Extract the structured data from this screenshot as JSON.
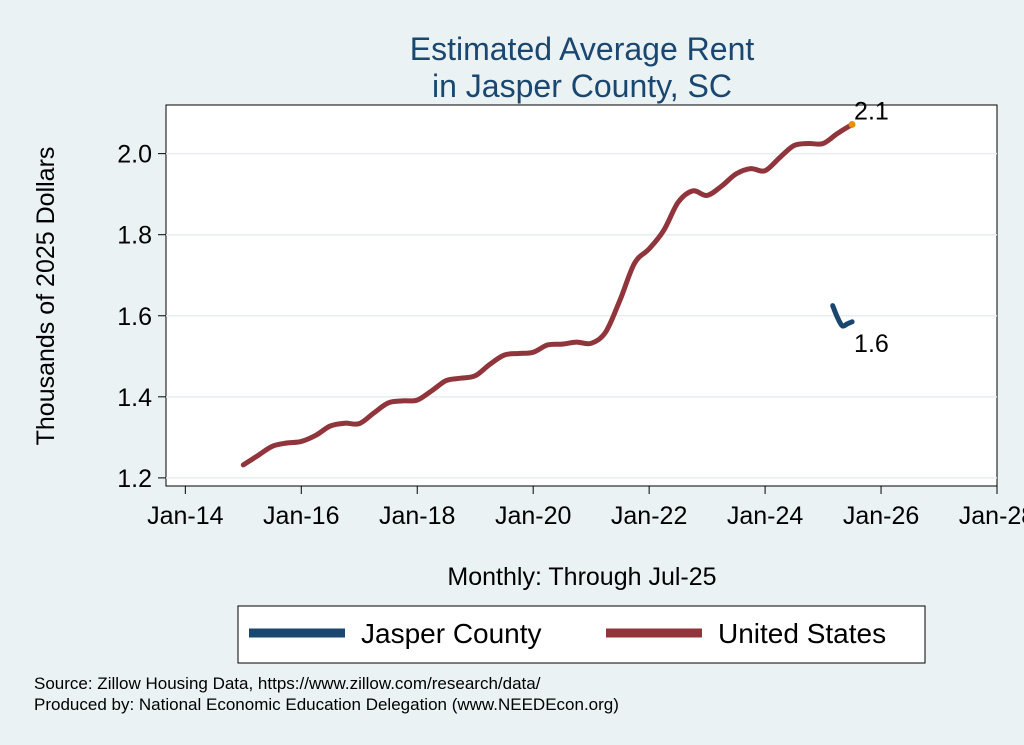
{
  "chart_data": {
    "type": "line",
    "title": [
      "Estimated Average Rent",
      "in Jasper County, SC"
    ],
    "ylabel": "Thousands of 2025 Dollars",
    "xlabel": "Monthly: Through Jul-25",
    "x_ticks": [
      "Jan-14",
      "Jan-16",
      "Jan-18",
      "Jan-20",
      "Jan-22",
      "Jan-24",
      "Jan-26",
      "Jan-28"
    ],
    "y_ticks": [
      "1.2",
      "1.4",
      "1.6",
      "1.8",
      "2.0"
    ],
    "xlim": [
      "2013-09",
      "2028-01"
    ],
    "ylim": [
      1.18,
      2.12
    ],
    "grid": true,
    "legend_position": "bottom",
    "series": [
      {
        "name": "Jasper County",
        "color": "#1a476f",
        "end_label": "1.6",
        "points": [
          [
            "2025-03",
            1.625
          ],
          [
            "2025-04",
            1.595
          ],
          [
            "2025-05",
            1.575
          ],
          [
            "2025-06",
            1.58
          ],
          [
            "2025-07",
            1.585
          ]
        ]
      },
      {
        "name": "United States",
        "color": "#90353b",
        "end_label": "2.1",
        "end_marker_color": "#e8900c",
        "points": [
          [
            "2015-01",
            1.232
          ],
          [
            "2015-04",
            1.255
          ],
          [
            "2015-07",
            1.278
          ],
          [
            "2015-10",
            1.286
          ],
          [
            "2016-01",
            1.29
          ],
          [
            "2016-04",
            1.305
          ],
          [
            "2016-07",
            1.328
          ],
          [
            "2016-10",
            1.335
          ],
          [
            "2017-01",
            1.334
          ],
          [
            "2017-04",
            1.36
          ],
          [
            "2017-07",
            1.385
          ],
          [
            "2017-10",
            1.39
          ],
          [
            "2018-01",
            1.392
          ],
          [
            "2018-04",
            1.415
          ],
          [
            "2018-07",
            1.44
          ],
          [
            "2018-10",
            1.446
          ],
          [
            "2019-01",
            1.452
          ],
          [
            "2019-04",
            1.48
          ],
          [
            "2019-07",
            1.503
          ],
          [
            "2019-10",
            1.507
          ],
          [
            "2020-01",
            1.51
          ],
          [
            "2020-04",
            1.528
          ],
          [
            "2020-07",
            1.53
          ],
          [
            "2020-10",
            1.535
          ],
          [
            "2021-01",
            1.532
          ],
          [
            "2021-04",
            1.56
          ],
          [
            "2021-07",
            1.64
          ],
          [
            "2021-10",
            1.73
          ],
          [
            "2022-01",
            1.765
          ],
          [
            "2022-04",
            1.81
          ],
          [
            "2022-07",
            1.88
          ],
          [
            "2022-10",
            1.908
          ],
          [
            "2023-01",
            1.897
          ],
          [
            "2023-04",
            1.92
          ],
          [
            "2023-07",
            1.95
          ],
          [
            "2023-10",
            1.963
          ],
          [
            "2024-01",
            1.958
          ],
          [
            "2024-04",
            1.99
          ],
          [
            "2024-07",
            2.02
          ],
          [
            "2024-10",
            2.025
          ],
          [
            "2025-01",
            2.025
          ],
          [
            "2025-04",
            2.05
          ],
          [
            "2025-07",
            2.072
          ]
        ]
      }
    ],
    "notes": [
      "Source: Zillow Housing Data, https://www.zillow.com/research/data/",
      "Produced by: National Economic Education Delegation (www.NEEDEcon.org)"
    ]
  }
}
